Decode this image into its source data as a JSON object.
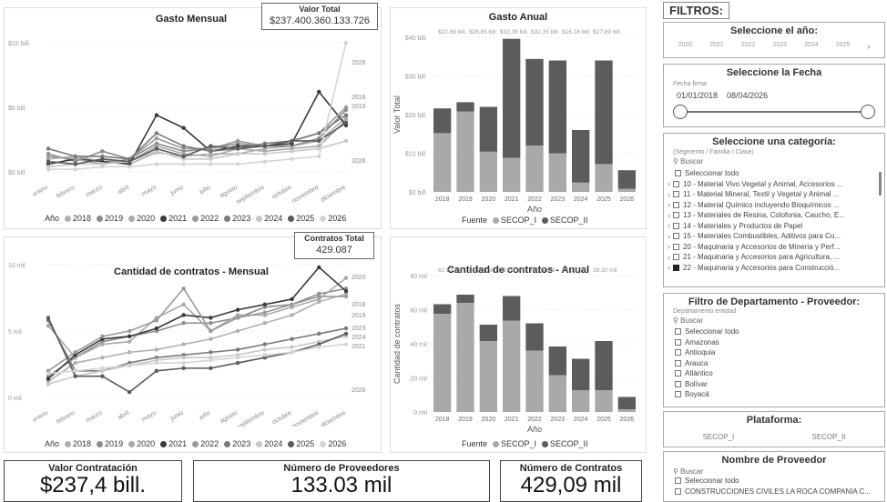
{
  "monthly_spend": {
    "title": "Gasto Mensual",
    "total_label": "Valor Total",
    "total_value": "$237.400.360.133.726",
    "y_ticks": [
      "$10 bill.",
      "$5 bill.",
      "$0 bill."
    ],
    "months": [
      "enero",
      "febrero",
      "marzo",
      "abril",
      "mayo",
      "junio",
      "julio",
      "agosto",
      "septiembre",
      "octubre",
      "noviembre",
      "diciembre"
    ],
    "right_labels": [
      "2026",
      "2018",
      "2019",
      "2026"
    ],
    "legend_title": "Año",
    "legend_years": [
      "2018",
      "2019",
      "2020",
      "2021",
      "2022",
      "2023",
      "2024",
      "2025",
      "2026"
    ]
  },
  "annual_spend": {
    "title": "Gasto Anual",
    "ylabel": "Valor Total",
    "xlabel": "Año",
    "y_ticks": [
      "$40 bill.",
      "$30 bill.",
      "$20 bill.",
      "$10 bill.",
      "$0 bill."
    ],
    "top_labels": [
      "$22,68 bill.",
      "$26,85 bill.",
      "$32,39 bill.",
      "$32,35 bill.",
      "$16,18 bill.",
      "$17,89 bill."
    ],
    "years": [
      "2018",
      "2019",
      "2020",
      "2021",
      "2022",
      "2023",
      "2024",
      "2025",
      "2026"
    ],
    "legend_title": "Fuente",
    "legend": [
      "SECOP_I",
      "SECOP_II"
    ]
  },
  "monthly_contracts": {
    "title": "Cantidad de contratos - Mensual",
    "total_label": "Contratos Total",
    "total_value": "429.087",
    "y_ticks": [
      "10 mil",
      "5 mil",
      "0 mil"
    ],
    "months": [
      "enero",
      "febrero",
      "marzo",
      "abril",
      "mayo",
      "junio",
      "julio",
      "agosto",
      "septiembre",
      "octubre",
      "noviembre",
      "diciembre"
    ],
    "right_labels": [
      "2020",
      "2018",
      "2019",
      "2023",
      "2024",
      "2021",
      "2026"
    ],
    "legend_title": "Año",
    "legend_years": [
      "2018",
      "2019",
      "2020",
      "2021",
      "2022",
      "2023",
      "2024",
      "2025",
      "2026"
    ]
  },
  "annual_contracts": {
    "title": "Cantidad de contratos - Anual",
    "ylabel": "Cantidad de contratos",
    "xlabel": "Año",
    "y_ticks": [
      "80 mil",
      "60 mil",
      "40 mil",
      "20 mil",
      "0 mil"
    ],
    "top_labels": [
      "62,80 mil",
      "65,22 mil",
      "51,60 mil",
      "45,39 mil",
      "37,65 mil",
      "39,30 mil"
    ],
    "years": [
      "2018",
      "2019",
      "2020",
      "2021",
      "2022",
      "2023",
      "2024",
      "2025",
      "2026"
    ],
    "legend_title": "Fuente",
    "legend": [
      "SECOP_I",
      "SECOP_II"
    ]
  },
  "kpis": [
    {
      "title": "Valor Contratación",
      "value": "$237,4 bill."
    },
    {
      "title": "Número de Proveedores",
      "value": "133.03 mil"
    },
    {
      "title": "Número de Contratos",
      "value": "429,09 mil"
    }
  ],
  "filters": {
    "header": "FILTROS:",
    "year": {
      "title": "Seleccione el año:",
      "years": [
        "2020",
        "2021",
        "2022",
        "2023",
        "2024",
        "2025"
      ]
    },
    "date": {
      "title": "Seleccione la Fecha",
      "caption": "Fecha firma",
      "start": "01/01/2018",
      "end": "08/04/2026"
    },
    "category": {
      "title": "Seleccione una categoría:",
      "caption": "(Segmento / Familia / Clase)",
      "search": "Buscar",
      "items": [
        "Seleccionar todo",
        "10 - Material Vivo Vegetal y Animal, Accesorios ...",
        "11 - Material Mineral, Textil y Vegetal y Animal ...",
        "12 - Material Químico incluyendo Bioquímicos ...",
        "13 - Materiales de Resina, Colofonia, Caucho, E...",
        "14 - Materiales y Productos de Papel",
        "15 - Materiales Combustibles, Aditivos para Co...",
        "20 - Maquinaria y Accesorios de Minería y Perf...",
        "21 - Maquinaria y Accesorios para Agricultura, ...",
        "22 - Maquinaria y Accesorios para Construcció..."
      ]
    },
    "department": {
      "title": "Filtro de Departamento - Proveedor:",
      "caption": "Departamento entidad",
      "search": "Buscar",
      "items": [
        "Seleccionar todo",
        "Amazonas",
        "Antioquia",
        "Arauca",
        "Atlántico",
        "Bolívar",
        "Boyacá"
      ]
    },
    "platform": {
      "title": "Plataforma:",
      "options": [
        "SECOP_I",
        "SECOP_II"
      ]
    },
    "provider": {
      "title": "Nombre de Proveedor",
      "search": "Buscar",
      "items": [
        "Seleccionar todo",
        "CONSTRUCCIONES CIVILES LA ROCA COMPANIA C..."
      ]
    }
  },
  "colors": {
    "y2018": "#b0b0b0",
    "y2019": "#8c8c8c",
    "y2020": "#a8a8a8",
    "y2021": "#3a3a3a",
    "y2022": "#9a9a9a",
    "y2023": "#7a7a7a",
    "y2024": "#c8c8c8",
    "y2025": "#5a5a5a",
    "y2026": "#d4d4d4",
    "secop_i": "#a9a9a9",
    "secop_ii": "#5c5c5c"
  }
}
